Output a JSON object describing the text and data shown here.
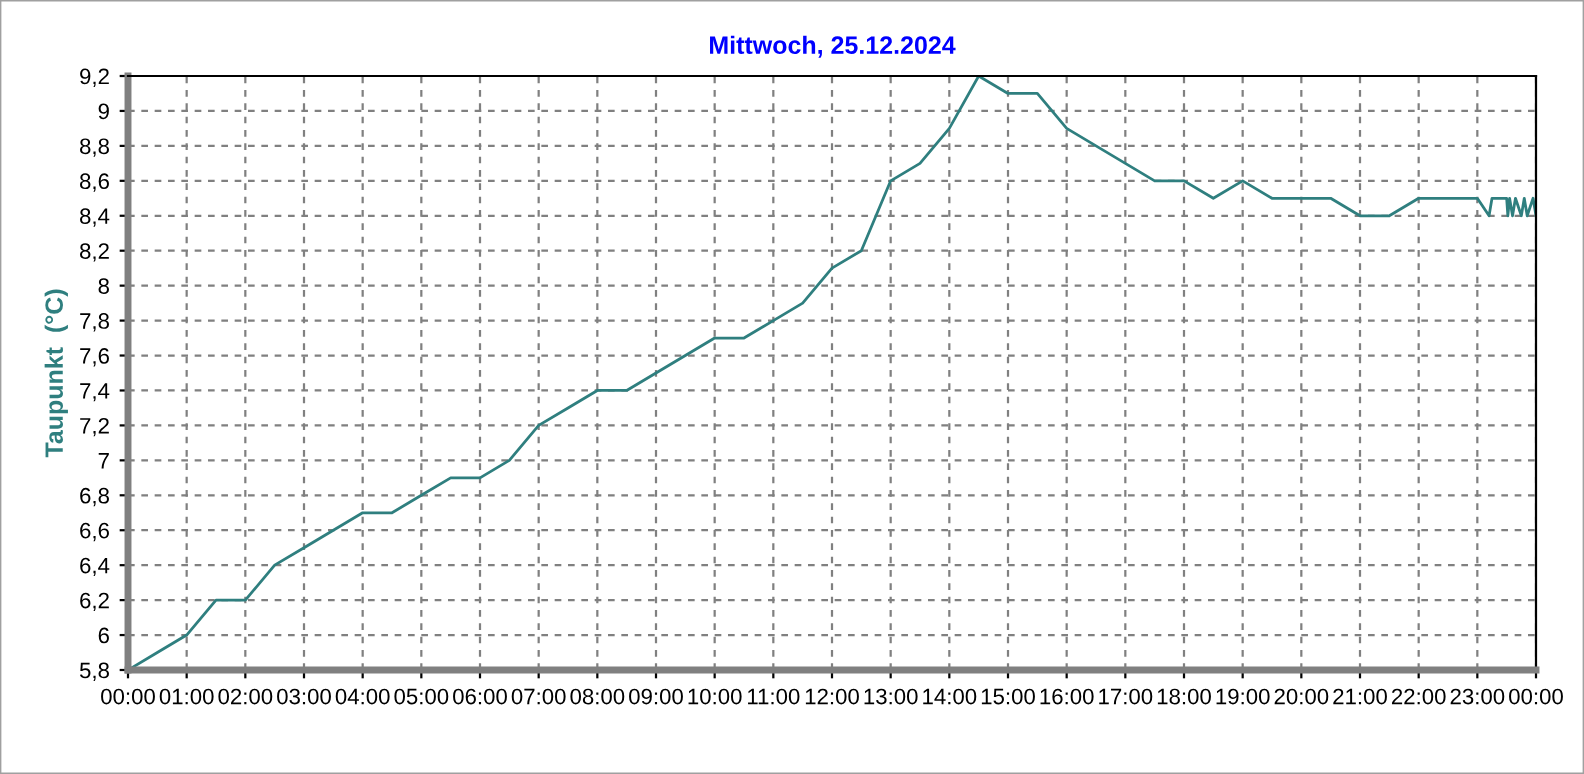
{
  "chart_data": {
    "type": "line",
    "title": "Mittwoch, 25.12.2024",
    "ylabel": "Taupunkt  (°C)",
    "x": [
      0,
      0.5,
      1,
      1.5,
      2,
      2.5,
      3,
      3.5,
      4,
      4.5,
      5,
      5.5,
      6,
      6.5,
      7,
      7.5,
      8,
      8.5,
      9,
      9.5,
      10,
      10.5,
      11,
      11.5,
      12,
      12.5,
      13,
      13.5,
      14,
      14.5,
      15,
      15.5,
      16,
      16.5,
      17,
      17.5,
      18,
      18.5,
      19,
      19.5,
      20,
      20.5,
      21,
      21.5,
      22,
      22.5,
      23,
      23.2,
      23.25,
      23.5,
      23.52,
      23.55,
      23.6,
      23.65,
      23.75,
      23.8,
      23.85,
      23.95,
      24
    ],
    "series": [
      {
        "color": "#2f7f7f",
        "values": [
          5.8,
          5.9,
          6.0,
          6.2,
          6.2,
          6.4,
          6.5,
          6.6,
          6.7,
          6.7,
          6.8,
          6.9,
          6.9,
          7.0,
          7.2,
          7.3,
          7.4,
          7.4,
          7.5,
          7.6,
          7.7,
          7.7,
          7.8,
          7.9,
          8.1,
          8.2,
          8.6,
          8.7,
          8.9,
          9.2,
          9.1,
          9.1,
          8.9,
          8.8,
          8.7,
          8.6,
          8.6,
          8.5,
          8.6,
          8.5,
          8.5,
          8.5,
          8.4,
          8.4,
          8.5,
          8.5,
          8.5,
          8.4,
          8.5,
          8.5,
          8.4,
          8.5,
          8.4,
          8.5,
          8.4,
          8.5,
          8.4,
          8.5,
          8.4
        ]
      }
    ],
    "xlim": [
      0,
      24
    ],
    "xticks": [
      {
        "value": 0,
        "label": "00:00"
      },
      {
        "value": 1,
        "label": "01:00"
      },
      {
        "value": 2,
        "label": "02:00"
      },
      {
        "value": 3,
        "label": "03:00"
      },
      {
        "value": 4,
        "label": "04:00"
      },
      {
        "value": 5,
        "label": "05:00"
      },
      {
        "value": 6,
        "label": "06:00"
      },
      {
        "value": 7,
        "label": "07:00"
      },
      {
        "value": 8,
        "label": "08:00"
      },
      {
        "value": 9,
        "label": "09:00"
      },
      {
        "value": 10,
        "label": "10:00"
      },
      {
        "value": 11,
        "label": "11:00"
      },
      {
        "value": 12,
        "label": "12:00"
      },
      {
        "value": 13,
        "label": "13:00"
      },
      {
        "value": 14,
        "label": "14:00"
      },
      {
        "value": 15,
        "label": "15:00"
      },
      {
        "value": 16,
        "label": "16:00"
      },
      {
        "value": 17,
        "label": "17:00"
      },
      {
        "value": 18,
        "label": "18:00"
      },
      {
        "value": 19,
        "label": "19:00"
      },
      {
        "value": 20,
        "label": "20:00"
      },
      {
        "value": 21,
        "label": "21:00"
      },
      {
        "value": 22,
        "label": "22:00"
      },
      {
        "value": 23,
        "label": "23:00"
      },
      {
        "value": 24,
        "label": "00:00"
      }
    ],
    "ylim": [
      5.8,
      9.2
    ],
    "yticks": [
      {
        "value": 5.8,
        "label": "5,8"
      },
      6,
      {
        "value": 6.2,
        "label": "6,2"
      },
      {
        "value": 6.4,
        "label": "6,4"
      },
      {
        "value": 6.6,
        "label": "6,6"
      },
      {
        "value": 6.8,
        "label": "6,8"
      },
      7,
      {
        "value": 7.2,
        "label": "7,2"
      },
      {
        "value": 7.4,
        "label": "7,4"
      },
      {
        "value": 7.6,
        "label": "7,6"
      },
      {
        "value": 7.8,
        "label": "7,8"
      },
      8,
      {
        "value": 8.2,
        "label": "8,2"
      },
      {
        "value": 8.4,
        "label": "8,4"
      },
      {
        "value": 8.6,
        "label": "8,6"
      },
      {
        "value": 8.8,
        "label": "8,8"
      },
      9,
      {
        "value": 9.2,
        "label": "9,2"
      }
    ],
    "grid": true,
    "marker": "none",
    "line_style": "solid"
  }
}
